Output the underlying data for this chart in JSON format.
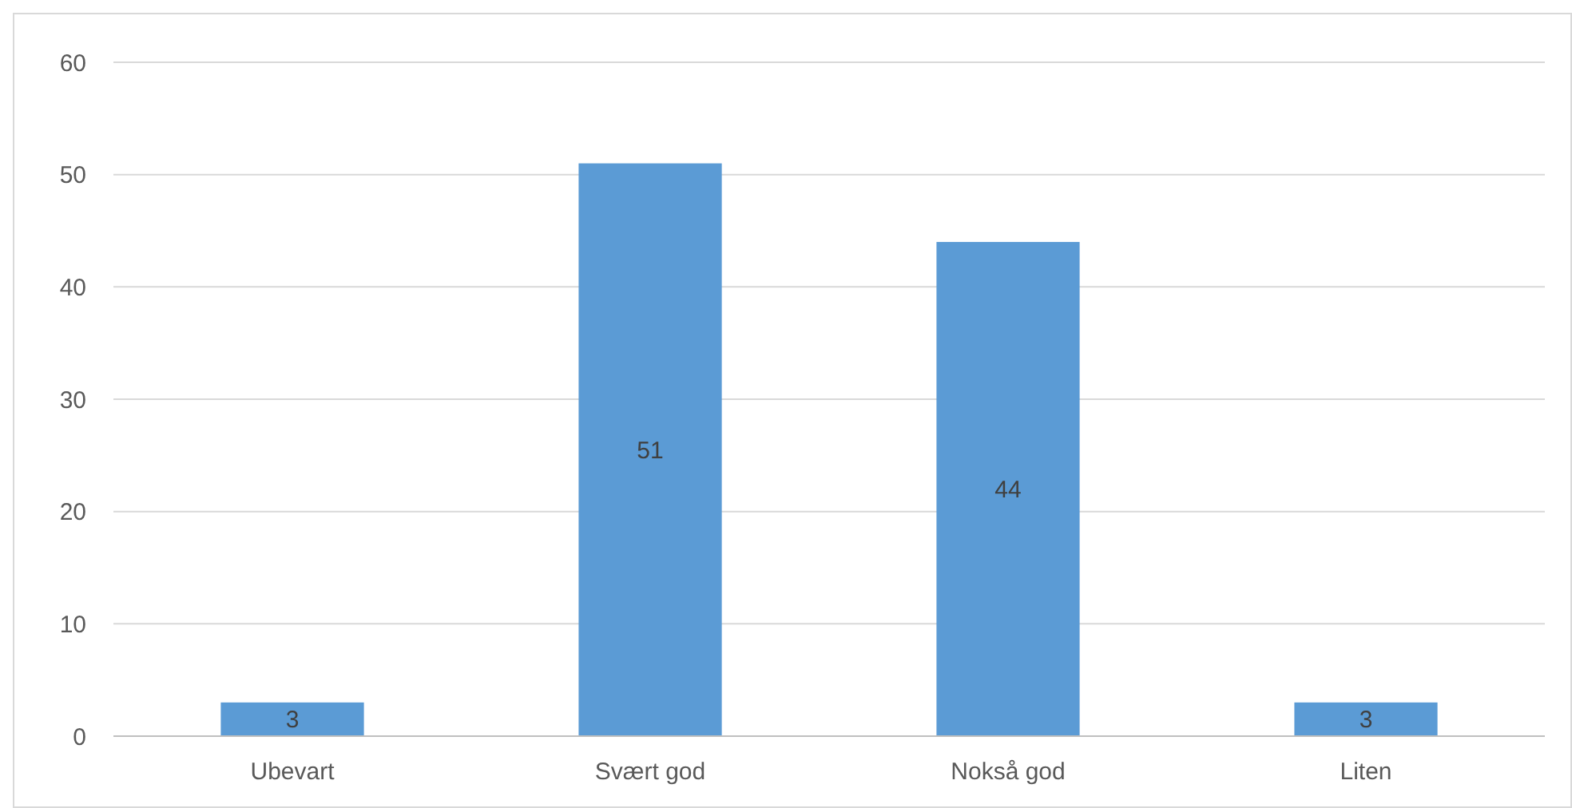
{
  "chart_data": {
    "type": "bar",
    "categories": [
      "Ubevart",
      "Svært god",
      "Nokså god",
      "Liten"
    ],
    "values": [
      3,
      51,
      44,
      3
    ],
    "color": "#5b9bd5",
    "ylim": [
      0,
      60
    ],
    "yticks": [
      0,
      10,
      20,
      30,
      40,
      50,
      60
    ],
    "grid": "y",
    "data_labels": true
  }
}
